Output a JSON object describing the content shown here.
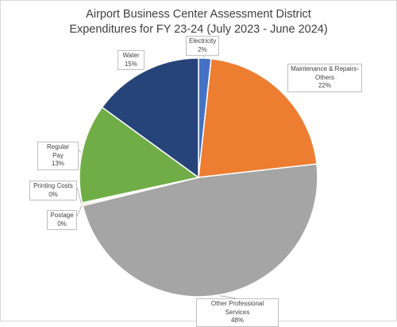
{
  "chart_data": {
    "type": "pie",
    "title_line1": "Airport Business Center Assessment District",
    "title_line2": "Expenditures for FY 23-24 (July 2023 - June 2024)",
    "slices": [
      {
        "label": "Electricity",
        "percent_label": "2%",
        "value": 1.7,
        "color": "#4472c4"
      },
      {
        "label": "Maintenance & Repairs-Others",
        "percent_label": "22%",
        "value": 21.5,
        "color": "#ed7d31"
      },
      {
        "label": "Other Professional Services",
        "percent_label": "48%",
        "value": 48.0,
        "color": "#a5a5a5"
      },
      {
        "label": "Postage",
        "percent_label": "0%",
        "value": 0.2,
        "color": "#ffc000"
      },
      {
        "label": "Printing Costs",
        "percent_label": "0%",
        "value": 0.2,
        "color": "#5b9bd5"
      },
      {
        "label": "Regular Pay",
        "percent_label": "13%",
        "value": 13.4,
        "color": "#70ad47"
      },
      {
        "label": "Water",
        "percent_label": "15%",
        "value": 15.0,
        "color": "#264478"
      }
    ]
  }
}
